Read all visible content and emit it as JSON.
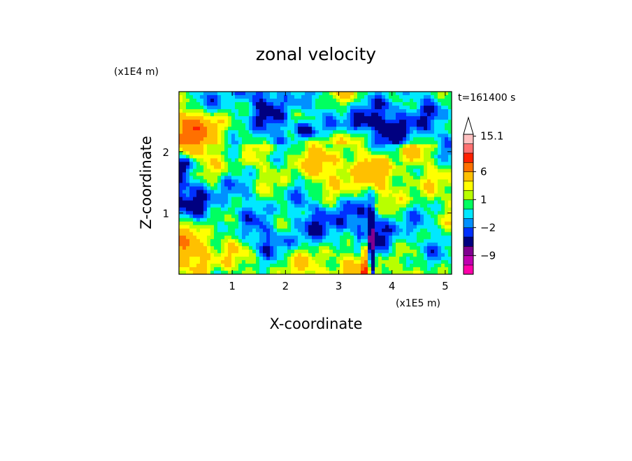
{
  "chart_data": {
    "type": "heatmap",
    "title": "zonal velocity",
    "xlabel": "X-coordinate",
    "ylabel": "Z-coordinate",
    "x_multiplier": "(x1E5 m)",
    "y_multiplier": "(x1E4 m)",
    "time_label": "t=161400 s",
    "x_ticks": [
      "1",
      "2",
      "3",
      "4",
      "5"
    ],
    "y_ticks": [
      "1",
      "2"
    ],
    "xlim": [
      0,
      5.12
    ],
    "ylim": [
      0,
      2.98
    ],
    "colorbar": {
      "levels": [
        -15,
        -12,
        -9,
        -6,
        -3,
        -2,
        -1,
        0,
        1,
        2,
        3,
        6,
        9,
        12,
        15.1
      ],
      "colors": [
        "#ff00aa",
        "#c000b0",
        "#800090",
        "#000080",
        "#0030ff",
        "#0090ff",
        "#00e8ff",
        "#00ff60",
        "#b8ff00",
        "#ffff00",
        "#ffc000",
        "#ff7000",
        "#ff2000",
        "#ff7070",
        "#ffc0c0"
      ],
      "tick_labels": [
        "15.1",
        "6",
        "1",
        "−2",
        "−9"
      ],
      "extend": "max"
    }
  }
}
